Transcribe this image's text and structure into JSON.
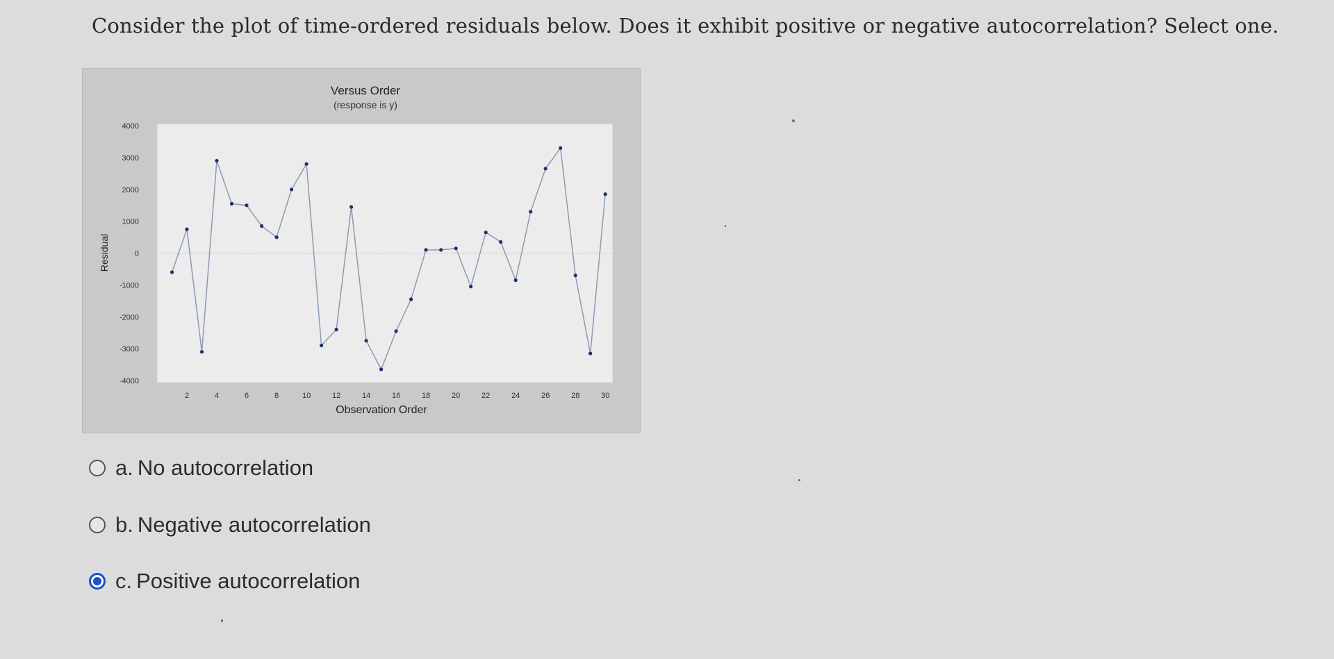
{
  "question": {
    "text": "Consider the plot of time-ordered residuals below. Does it exhibit positive or negative autocorrelation? Select one."
  },
  "options": [
    {
      "letter": "a.",
      "label": "No autocorrelation",
      "selected": false
    },
    {
      "letter": "b.",
      "label": "Negative autocorrelation",
      "selected": false
    },
    {
      "letter": "c.",
      "label": "Positive autocorrelation",
      "selected": true
    }
  ],
  "colors": {
    "selected_radio": "#1a4fd0",
    "plot_line": "#8a9bb4",
    "plot_point": "#1f2f6b"
  },
  "chart_data": {
    "type": "line",
    "title": "Versus Order",
    "subtitle": "(response is y)",
    "xlabel": "Observation Order",
    "ylabel": "Residual",
    "xlim": [
      0,
      30.5
    ],
    "ylim": [
      -4000,
      4000
    ],
    "x_ticks": [
      2,
      4,
      6,
      8,
      10,
      12,
      14,
      16,
      18,
      20,
      22,
      24,
      26,
      28,
      30
    ],
    "y_ticks": [
      4000,
      3000,
      2000,
      1000,
      0,
      -1000,
      -2000,
      -3000,
      -4000
    ],
    "reference_line": 0,
    "grid": false,
    "series": [
      {
        "x": [
          1,
          2,
          3,
          4,
          5,
          6,
          7,
          8,
          9,
          10,
          11,
          12,
          13,
          14,
          15,
          16,
          17,
          18,
          19,
          20,
          21,
          22,
          23,
          24,
          25,
          26,
          27,
          28,
          29,
          30
        ],
        "y": [
          -600,
          750,
          -3100,
          2900,
          1550,
          1500,
          850,
          500,
          2000,
          2800,
          -2900,
          -2400,
          1450,
          -2750,
          -3650,
          -2450,
          -1450,
          100,
          100,
          150,
          -1050,
          650,
          350,
          -850,
          1300,
          2650,
          3300,
          -700,
          -3150,
          1850
        ]
      }
    ]
  }
}
